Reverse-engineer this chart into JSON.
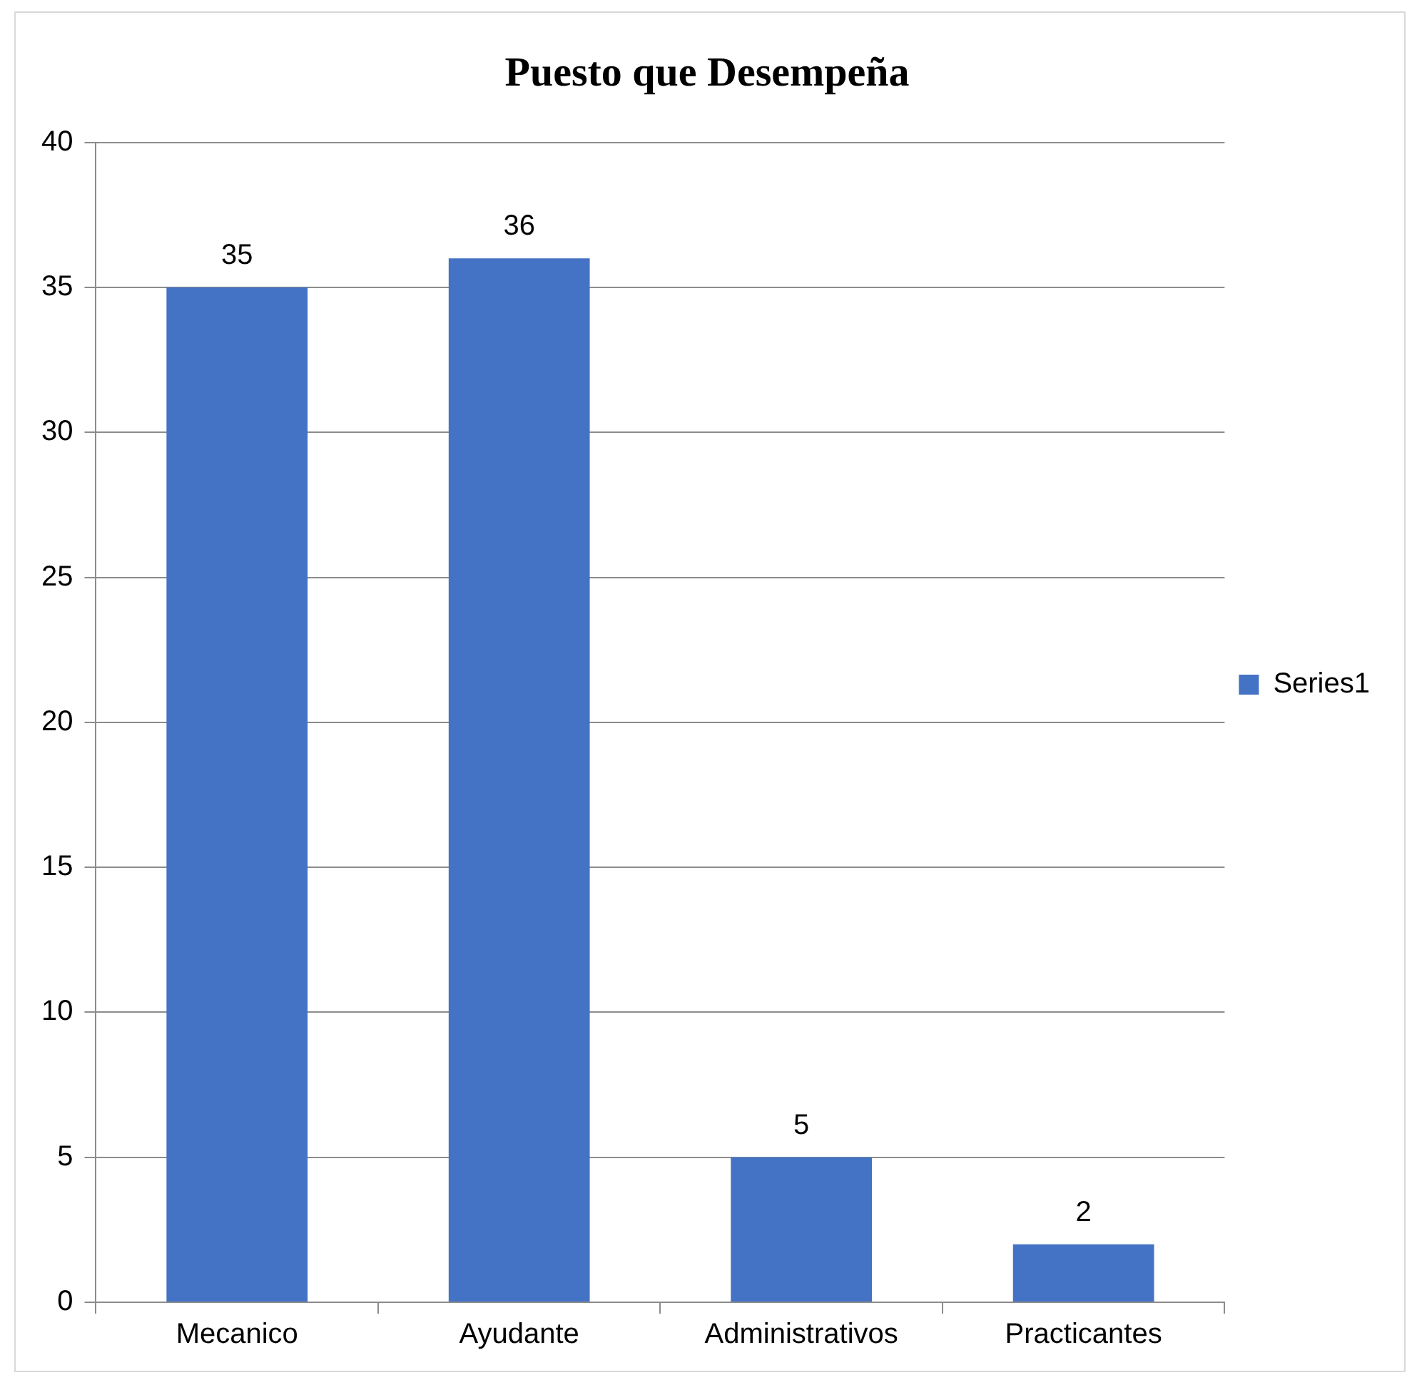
{
  "chart_data": {
    "type": "bar",
    "title": "Puesto que Desempeña",
    "categories": [
      "Mecanico",
      "Ayudante",
      "Administrativos",
      "Practicantes"
    ],
    "series": [
      {
        "name": "Series1",
        "color": "#4472c4",
        "values": [
          35,
          36,
          5,
          2
        ]
      }
    ],
    "ylim": [
      0,
      40
    ],
    "yticks": [
      0,
      5,
      10,
      15,
      20,
      25,
      30,
      35,
      40
    ],
    "grid": "y",
    "legend": "right",
    "data_labels": true
  }
}
